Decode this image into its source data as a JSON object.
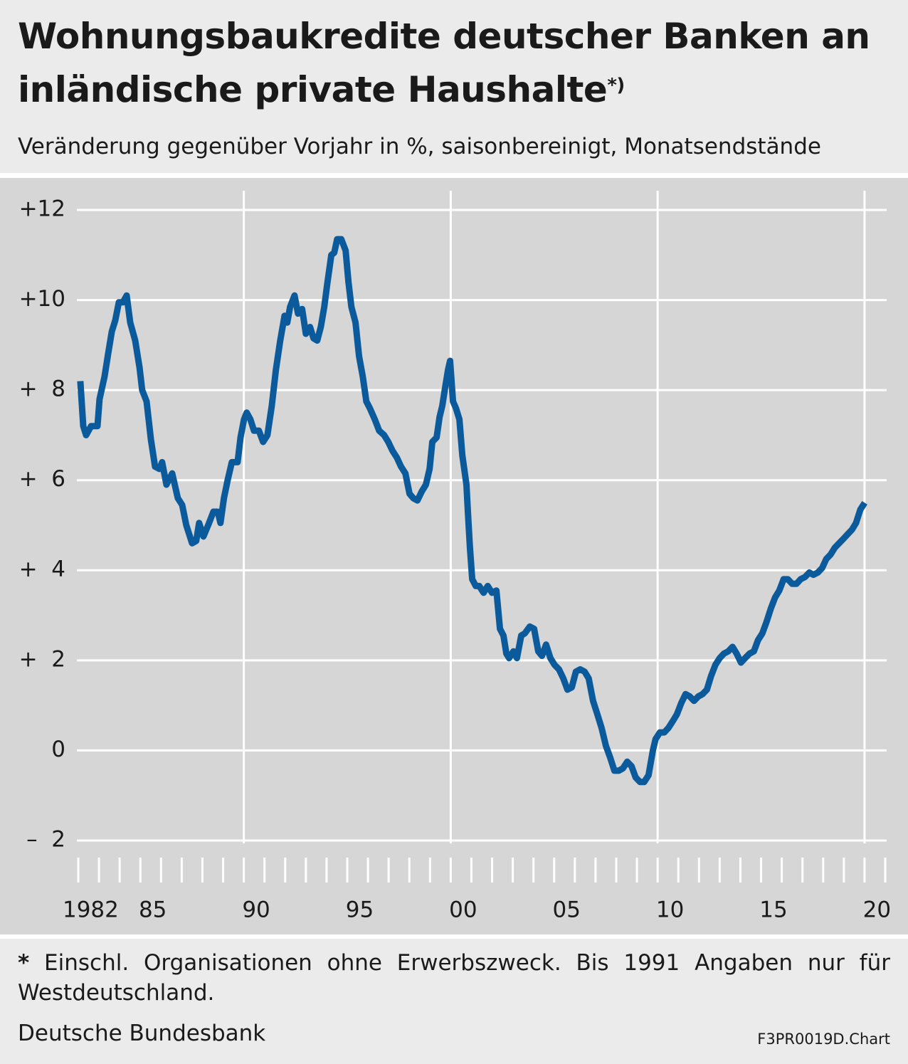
{
  "chart_data": {
    "type": "line",
    "title": "Wohnungsbaukredite deutscher Banken an inländische private Haushalte",
    "title_note": "*)",
    "subtitle": "Veränderung gegenüber Vorjahr in %, saisonbereinigt, Monatsendstände",
    "footnote_marker": "*",
    "footnote": "Einschl. Organisationen ohne Erwerbszweck. Bis 1991 Angaben nur für Westdeutschland.",
    "source": "Deutsche Bundesbank",
    "chart_id": "F3PR0019D.Chart",
    "color": "#0b5a9c",
    "xlim": [
      1982,
      2021
    ],
    "ylim": [
      -2,
      12
    ],
    "yticks": [
      {
        "value": 12,
        "label": "+12"
      },
      {
        "value": 10,
        "label": "+10"
      },
      {
        "value": 8,
        "label": "+  8"
      },
      {
        "value": 6,
        "label": "+  6"
      },
      {
        "value": 4,
        "label": "+  4"
      },
      {
        "value": 2,
        "label": "+  2"
      },
      0,
      {
        "value": -2,
        "label": "–  2"
      }
    ],
    "xticks": [
      1982,
      {
        "value": 1985,
        "label": "85"
      },
      {
        "value": 1990,
        "label": "90"
      },
      {
        "value": 1995,
        "label": "95"
      },
      {
        "value": 2000,
        "label": "00"
      },
      {
        "value": 2005,
        "label": "05"
      },
      {
        "value": 2010,
        "label": "10"
      },
      {
        "value": 2015,
        "label": "15"
      },
      {
        "value": 2020,
        "label": "20"
      }
    ],
    "xticks_minor": [
      1982,
      1983,
      1984,
      1985,
      1986,
      1987,
      1988,
      1989,
      1990,
      1991,
      1992,
      1993,
      1994,
      1995,
      1996,
      1997,
      1998,
      1999,
      2000,
      2001,
      2002,
      2003,
      2004,
      2005,
      2006,
      2007,
      2008,
      2009,
      2010,
      2011,
      2012,
      2013,
      2014,
      2015,
      2016,
      2017,
      2018,
      2019,
      2020,
      2021
    ],
    "grid": true,
    "x": [
      1982.1,
      1982.24,
      1982.38,
      1982.62,
      1982.93,
      1983.03,
      1983.27,
      1983.44,
      1983.62,
      1983.79,
      1983.96,
      1984.16,
      1984.34,
      1984.51,
      1984.75,
      1984.96,
      1985.09,
      1985.3,
      1985.51,
      1985.71,
      1985.92,
      1986.05,
      1986.26,
      1986.54,
      1986.81,
      1987.02,
      1987.22,
      1987.5,
      1987.7,
      1987.84,
      1988.05,
      1988.32,
      1988.53,
      1988.74,
      1988.87,
      1989.04,
      1989.22,
      1989.42,
      1989.7,
      1989.84,
      1990.01,
      1990.14,
      1990.32,
      1990.49,
      1990.73,
      1990.93,
      1991.14,
      1991.35,
      1991.55,
      1991.76,
      1991.97,
      1992.1,
      1992.24,
      1992.45,
      1992.62,
      1992.82,
      1993.0,
      1993.2,
      1993.37,
      1993.55,
      1993.72,
      1993.89,
      1994.03,
      1994.23,
      1994.37,
      1994.51,
      1994.71,
      1994.92,
      1995.06,
      1995.2,
      1995.4,
      1995.57,
      1995.75,
      1995.92,
      1996.09,
      1996.33,
      1996.54,
      1996.78,
      1996.98,
      1997.19,
      1997.4,
      1997.6,
      1997.81,
      1998.01,
      1998.19,
      1998.39,
      1998.6,
      1998.8,
      1998.98,
      1999.11,
      1999.32,
      1999.46,
      1999.59,
      1999.73,
      1999.87,
      1999.97,
      2000.11,
      2000.25,
      2000.42,
      2000.56,
      2000.76,
      2000.83,
      2000.93,
      2001.04,
      2001.21,
      2001.38,
      2001.59,
      2001.79,
      2002.0,
      2002.21,
      2002.38,
      2002.55,
      2002.69,
      2002.82,
      2003.03,
      2003.2,
      2003.41,
      2003.58,
      2003.82,
      2004.03,
      2004.23,
      2004.41,
      2004.61,
      2004.82,
      2005.02,
      2005.23,
      2005.44,
      2005.64,
      2005.85,
      2006.05,
      2006.26,
      2006.47,
      2006.67,
      2006.88,
      2007.09,
      2007.29,
      2007.5,
      2007.7,
      2007.91,
      2008.12,
      2008.32,
      2008.53,
      2008.74,
      2008.94,
      2009.15,
      2009.35,
      2009.56,
      2009.77,
      2009.9,
      2010.11,
      2010.32,
      2010.52,
      2010.73,
      2010.93,
      2011.14,
      2011.35,
      2011.55,
      2011.76,
      2011.97,
      2012.17,
      2012.38,
      2012.58,
      2012.79,
      2013.0,
      2013.2,
      2013.41,
      2013.62,
      2013.82,
      2014.03,
      2014.23,
      2014.44,
      2014.65,
      2014.85,
      2015.06,
      2015.26,
      2015.47,
      2015.68,
      2015.88,
      2016.09,
      2016.3,
      2016.5,
      2016.71,
      2016.91,
      2017.12,
      2017.33,
      2017.53,
      2017.74,
      2017.95,
      2018.15,
      2018.36,
      2018.56,
      2018.77,
      2018.98,
      2019.18,
      2019.39,
      2019.59,
      2019.8,
      2020.01
    ],
    "values": [
      8.2,
      7.2,
      7.0,
      7.2,
      7.2,
      7.8,
      8.3,
      8.8,
      9.3,
      9.55,
      9.95,
      9.95,
      10.1,
      9.5,
      9.1,
      8.5,
      8.0,
      7.75,
      6.9,
      6.3,
      6.25,
      6.4,
      5.9,
      6.15,
      5.6,
      5.45,
      5.0,
      4.6,
      4.65,
      5.05,
      4.75,
      5.05,
      5.3,
      5.3,
      5.05,
      5.6,
      6.0,
      6.4,
      6.4,
      6.95,
      7.35,
      7.5,
      7.35,
      7.1,
      7.1,
      6.85,
      7.0,
      7.65,
      8.45,
      9.1,
      9.65,
      9.5,
      9.85,
      10.1,
      9.7,
      9.8,
      9.25,
      9.4,
      9.15,
      9.1,
      9.4,
      9.85,
      10.35,
      11.0,
      11.05,
      11.35,
      11.35,
      11.1,
      10.4,
      9.85,
      9.5,
      8.75,
      8.3,
      7.75,
      7.6,
      7.35,
      7.1,
      7.0,
      6.85,
      6.65,
      6.5,
      6.3,
      6.15,
      5.7,
      5.6,
      5.55,
      5.75,
      5.9,
      6.25,
      6.85,
      6.95,
      7.4,
      7.65,
      8.05,
      8.45,
      8.65,
      7.75,
      7.6,
      7.35,
      6.55,
      5.9,
      5.3,
      4.5,
      3.8,
      3.65,
      3.65,
      3.5,
      3.65,
      3.5,
      3.55,
      2.7,
      2.55,
      2.15,
      2.05,
      2.2,
      2.05,
      2.55,
      2.6,
      2.75,
      2.7,
      2.2,
      2.1,
      2.35,
      2.05,
      1.9,
      1.8,
      1.6,
      1.35,
      1.4,
      1.75,
      1.8,
      1.75,
      1.6,
      1.1,
      0.8,
      0.5,
      0.1,
      -0.15,
      -0.45,
      -0.45,
      -0.4,
      -0.25,
      -0.35,
      -0.6,
      -0.7,
      -0.7,
      -0.55,
      0.0,
      0.25,
      0.4,
      0.4,
      0.5,
      0.65,
      0.8,
      1.05,
      1.25,
      1.2,
      1.1,
      1.2,
      1.25,
      1.35,
      1.65,
      1.9,
      2.05,
      2.15,
      2.2,
      2.3,
      2.15,
      1.95,
      2.05,
      2.15,
      2.2,
      2.45,
      2.6,
      2.85,
      3.15,
      3.4,
      3.55,
      3.8,
      3.8,
      3.7,
      3.7,
      3.8,
      3.85,
      3.95,
      3.9,
      3.95,
      4.05,
      4.25,
      4.35,
      4.5,
      4.6,
      4.7,
      4.8,
      4.9,
      5.05,
      5.35,
      5.5
    ]
  }
}
